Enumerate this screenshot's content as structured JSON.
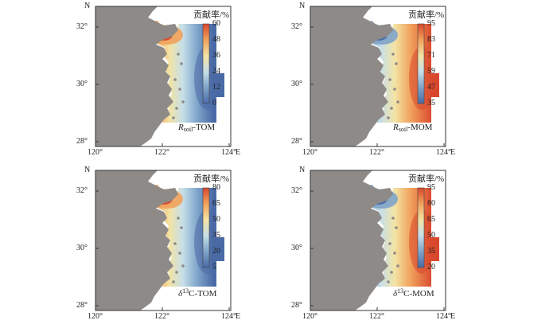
{
  "panels": [
    {
      "id": "rsoil-tom",
      "label": {
        "prefix": "R",
        "sub": "soil",
        "suffix": "-TOM"
      },
      "colorbar": {
        "title": "贡献率/%",
        "ticks": [
          "60",
          "48",
          "36",
          "24",
          "12",
          "0"
        ]
      },
      "pattern": "high-west"
    },
    {
      "id": "rsoil-mom",
      "label": {
        "prefix": "R",
        "sub": "soil",
        "suffix": "-MOM"
      },
      "colorbar": {
        "title": "贡献率/%",
        "ticks": [
          "95",
          "83",
          "71",
          "59",
          "47",
          "35"
        ]
      },
      "pattern": "high-east"
    },
    {
      "id": "d13c-tom",
      "label": {
        "prefix": "δ",
        "sup": "13",
        "suffix": "C-TOM"
      },
      "colorbar": {
        "title": "贡献率/%",
        "ticks": [
          "80",
          "65",
          "50",
          "35",
          "20",
          "5"
        ]
      },
      "pattern": "high-west"
    },
    {
      "id": "d13c-mom",
      "label": {
        "prefix": "δ",
        "sup": "13",
        "suffix": "C-MOM"
      },
      "colorbar": {
        "title": "贡献率/%",
        "ticks": [
          "95",
          "80",
          "65",
          "50",
          "35",
          "20"
        ]
      },
      "pattern": "high-east"
    }
  ],
  "axes": {
    "north": "N",
    "east": "E",
    "lat_ticks": [
      "32°",
      "30°",
      "28°"
    ],
    "lon_ticks": [
      "120°",
      "122°",
      "124°"
    ]
  },
  "colors": {
    "land": "#8e8a88",
    "frame": "#333333",
    "ramp": [
      "#4a6aa6",
      "#7fa4c9",
      "#c7dfe9",
      "#f3e3a4",
      "#f1a25c",
      "#d9482d"
    ]
  }
}
